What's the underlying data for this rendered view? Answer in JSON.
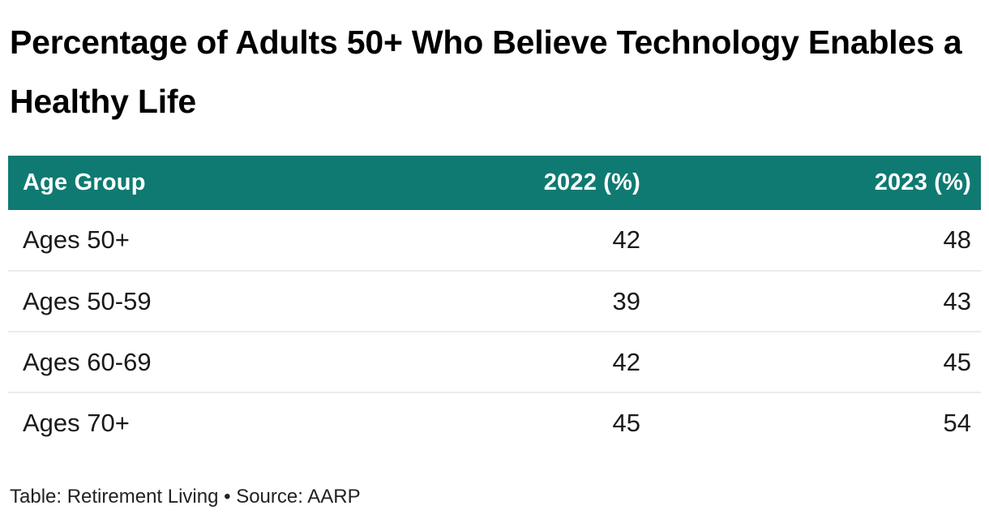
{
  "title": {
    "full": "Percentage of Adults 50+ Who Believe Technology Enables a Healthy Life",
    "line1": "Percentage of Adults 50+ Who Believe Technology Enables a",
    "line2": "Healthy Life"
  },
  "table": {
    "columns": [
      {
        "label": "Age Group",
        "align": "left"
      },
      {
        "label": "2022 (%)",
        "align": "right"
      },
      {
        "label": "2023 (%)",
        "align": "right"
      }
    ],
    "rows": [
      {
        "cells": [
          "Ages 50+",
          "42",
          "48"
        ]
      },
      {
        "cells": [
          "Ages 50-59",
          "39",
          "43"
        ]
      },
      {
        "cells": [
          "Ages 60-69",
          "42",
          "45"
        ]
      },
      {
        "cells": [
          "Ages 70+",
          "45",
          "54"
        ]
      }
    ]
  },
  "footer": {
    "text": "Table: Retirement Living • Source: AARP"
  },
  "colors": {
    "header_bg": "#0f7a72",
    "header_text": "#ffffff",
    "body_text": "#1a1a1a",
    "row_divider": "#ebebeb",
    "background": "#ffffff"
  },
  "chart_data": {
    "type": "table",
    "title": "Percentage of Adults 50+ Who Believe Technology Enables a Healthy Life",
    "categories": [
      "Ages 50+",
      "Ages 50-59",
      "Ages 60-69",
      "Ages 70+"
    ],
    "series": [
      {
        "name": "2022 (%)",
        "values": [
          42,
          39,
          42,
          45
        ]
      },
      {
        "name": "2023 (%)",
        "values": [
          48,
          43,
          45,
          54
        ]
      }
    ],
    "credit": "Table: Retirement Living • Source: AARP"
  }
}
